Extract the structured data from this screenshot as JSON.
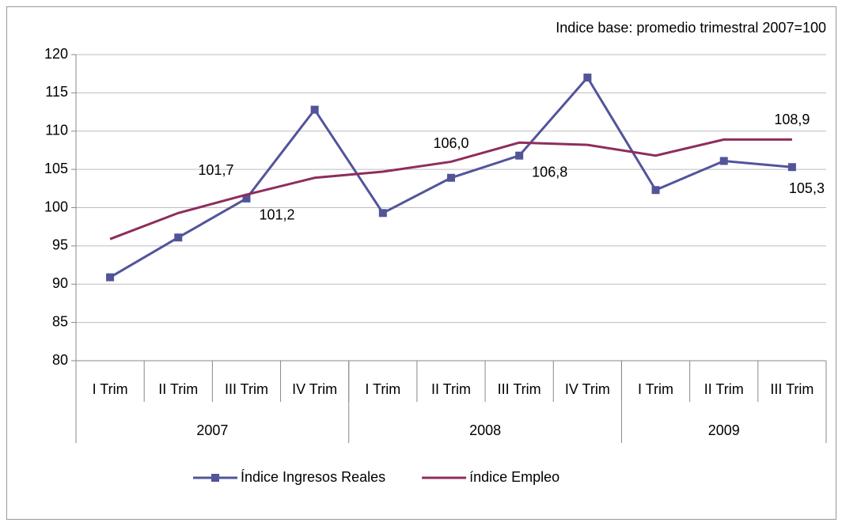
{
  "chart_data": {
    "type": "line",
    "annotation": "Indice base: promedio trimestral 2007=100",
    "groups": [
      {
        "name": "2007",
        "categories": [
          "I Trim",
          "II Trim",
          "III Trim",
          "IV Trim"
        ]
      },
      {
        "name": "2008",
        "categories": [
          "I Trim",
          "II Trim",
          "III Trim",
          "IV Trim"
        ]
      },
      {
        "name": "2009",
        "categories": [
          "I Trim",
          "II Trim",
          "III Trim"
        ]
      }
    ],
    "series": [
      {
        "name": "Índice Ingresos Reales",
        "color": "#52549a",
        "marker": "square",
        "values": [
          90.9,
          96.1,
          101.2,
          112.8,
          99.3,
          103.9,
          106.8,
          117.0,
          102.3,
          106.1,
          105.3
        ],
        "value_labels": [
          null,
          null,
          "101,2",
          null,
          null,
          null,
          "106,8",
          null,
          null,
          null,
          "105,3"
        ]
      },
      {
        "name": "índice Empleo",
        "color": "#8e2d5c",
        "marker": null,
        "values": [
          95.9,
          99.3,
          101.7,
          103.9,
          104.7,
          106.0,
          108.5,
          108.2,
          106.8,
          108.9,
          108.9
        ],
        "value_labels": [
          null,
          null,
          "101,7",
          null,
          null,
          "106,0",
          null,
          null,
          null,
          null,
          "108,9"
        ]
      }
    ],
    "ylim": [
      80,
      120
    ],
    "yticks": [
      80,
      85,
      90,
      95,
      100,
      105,
      110,
      115,
      120
    ],
    "grid": true,
    "legend": "bottom"
  }
}
